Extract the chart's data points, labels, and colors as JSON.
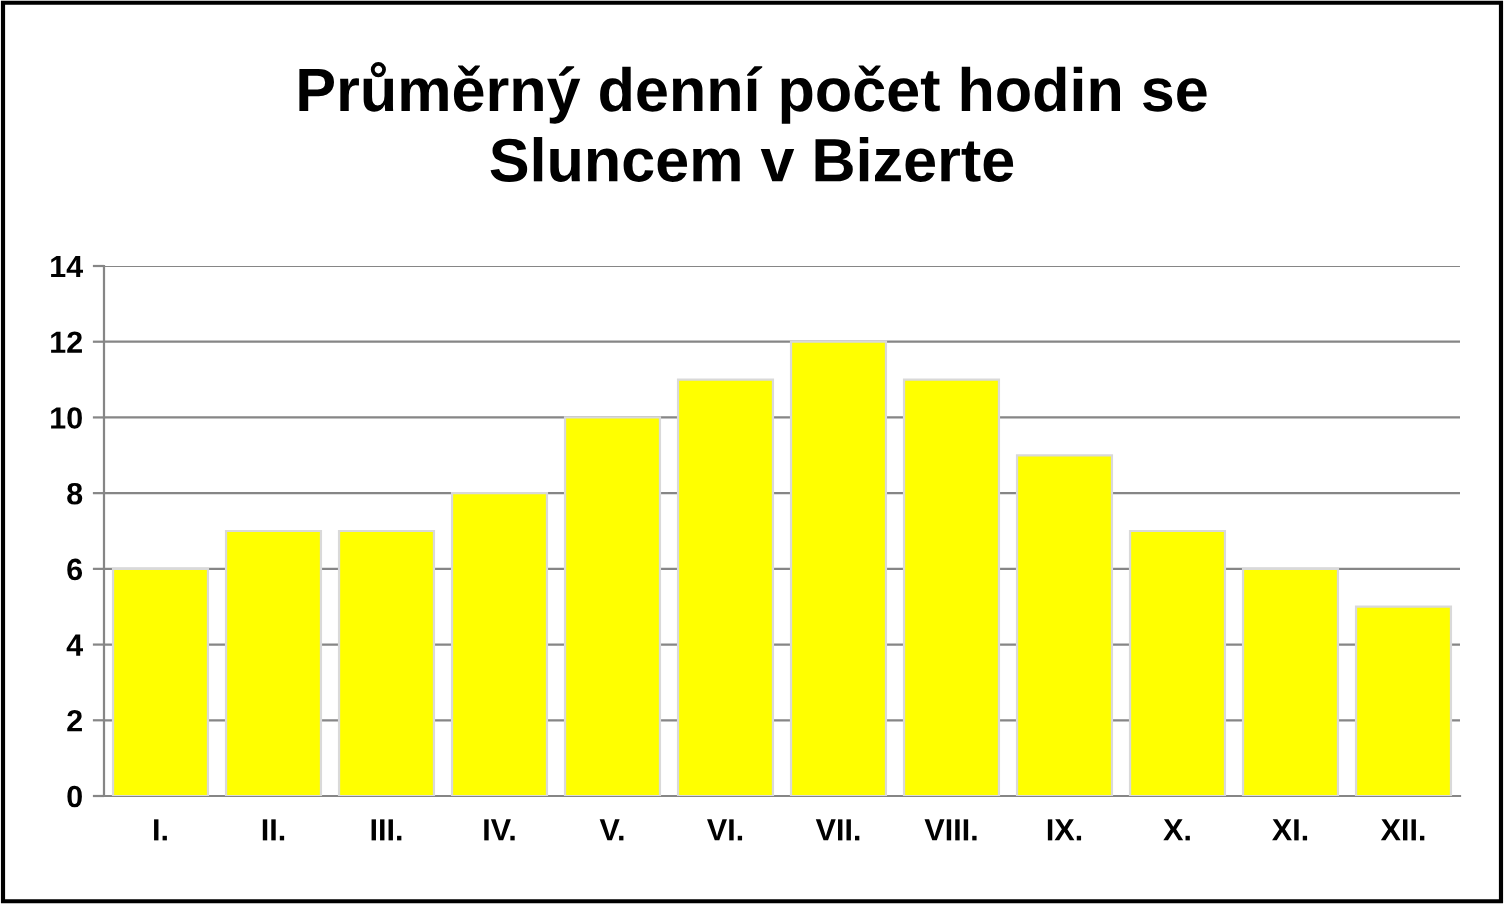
{
  "chart_data": {
    "type": "bar",
    "title": "Průměrný denní počet hodin se\nSluncem v Bizerte",
    "categories": [
      "I.",
      "II.",
      "III.",
      "IV.",
      "V.",
      "VI.",
      "VII.",
      "VIII.",
      "IX.",
      "X.",
      "XI.",
      "XII."
    ],
    "values": [
      6,
      7,
      7,
      8,
      10,
      11,
      12,
      11,
      9,
      7,
      6,
      5
    ],
    "color": "#ffff00",
    "ylim": [
      0,
      14
    ],
    "yticks": [
      0,
      2,
      4,
      6,
      8,
      10,
      12,
      14
    ],
    "grid": "y"
  }
}
